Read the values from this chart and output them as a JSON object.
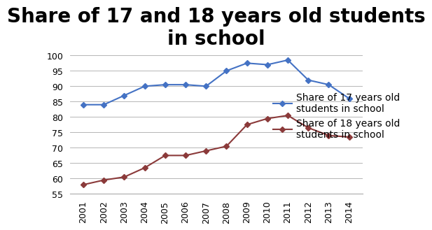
{
  "title": "Share of 17 and 18 years old students\nin school",
  "years": [
    2001,
    2002,
    2003,
    2004,
    2005,
    2006,
    2007,
    2008,
    2009,
    2010,
    2011,
    2012,
    2013,
    2014
  ],
  "series_17": [
    84,
    84,
    87,
    90,
    90.5,
    90.5,
    90,
    95,
    97.5,
    97,
    98.5,
    92,
    90.5,
    86
  ],
  "series_18": [
    58,
    59.5,
    60.5,
    63.5,
    67.5,
    67.5,
    69,
    70.5,
    77.5,
    79.5,
    80.5,
    76.5,
    74,
    73.5
  ],
  "color_17": "#4472C4",
  "color_18": "#8B3A3A",
  "marker": "D",
  "markersize": 4,
  "legend_17": "Share of 17 years old\nstudents in school",
  "legend_18": "Share of 18 years old\nstudents in school",
  "ylim": [
    55,
    101
  ],
  "yticks": [
    55,
    60,
    65,
    70,
    75,
    80,
    85,
    90,
    95,
    100
  ],
  "background_color": "#ffffff",
  "title_fontsize": 20,
  "legend_fontsize": 10,
  "tick_fontsize": 9,
  "linewidth": 1.5
}
